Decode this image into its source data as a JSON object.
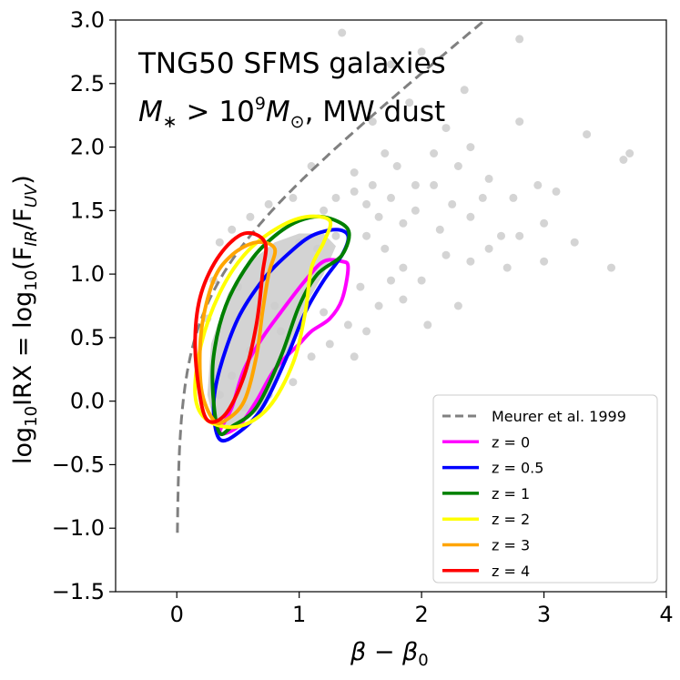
{
  "chart_data": {
    "type": "scatter",
    "title_line1": "TNG50 SFMS galaxies",
    "title_line2_prefix": "M",
    "title_line2_sub": "∗",
    "title_line2_gt": " > 10",
    "title_line2_sup": "9",
    "title_line2_m": "M",
    "title_line2_sun": "⊙",
    "title_line2_suffix": ", MW dust",
    "xlabel": "β − β",
    "xlabel_sub": "0",
    "ylabel_log": "log",
    "ylabel_sub10": "10",
    "ylabel_mid": "IRX = log",
    "ylabel_sub10b": "10",
    "ylabel_open": "(F",
    "ylabel_ir": "IR",
    "ylabel_slash": "/F",
    "ylabel_uv": "UV",
    "ylabel_close": ")",
    "xlim": [
      -0.5,
      4
    ],
    "ylim": [
      -1.5,
      3
    ],
    "xticks": [
      0,
      1,
      2,
      3,
      4
    ],
    "xtick_labels": [
      "0",
      "1",
      "2",
      "3",
      "4"
    ],
    "yticks": [
      -1.5,
      -1.0,
      -0.5,
      0.0,
      0.5,
      1.0,
      1.5,
      2.0,
      2.5,
      3.0
    ],
    "ytick_labels": [
      "−1.5",
      "−1.0",
      "−0.5",
      "0.0",
      "0.5",
      "1.0",
      "1.5",
      "2.0",
      "2.5",
      "3.0"
    ],
    "scatter_color": "#cccccc",
    "scatter_points": [
      [
        1.35,
        2.9
      ],
      [
        2.0,
        2.75
      ],
      [
        2.8,
        2.85
      ],
      [
        1.75,
        2.65
      ],
      [
        2.35,
        2.45
      ],
      [
        1.9,
        2.35
      ],
      [
        2.2,
        2.15
      ],
      [
        1.6,
        2.2
      ],
      [
        2.8,
        2.2
      ],
      [
        3.35,
        2.1
      ],
      [
        3.7,
        1.95
      ],
      [
        3.65,
        1.9
      ],
      [
        3.1,
        1.65
      ],
      [
        1.1,
        1.85
      ],
      [
        1.45,
        1.8
      ],
      [
        1.8,
        1.85
      ],
      [
        2.1,
        1.95
      ],
      [
        2.4,
        2.0
      ],
      [
        2.55,
        1.75
      ],
      [
        2.75,
        1.6
      ],
      [
        2.95,
        1.7
      ],
      [
        2.25,
        1.55
      ],
      [
        1.55,
        1.55
      ],
      [
        1.75,
        1.6
      ],
      [
        1.95,
        1.5
      ],
      [
        2.15,
        1.35
      ],
      [
        2.4,
        1.45
      ],
      [
        2.55,
        1.2
      ],
      [
        2.8,
        1.3
      ],
      [
        3.0,
        1.1
      ],
      [
        3.25,
        1.25
      ],
      [
        3.55,
        1.05
      ],
      [
        3.0,
        1.4
      ],
      [
        2.7,
        1.05
      ],
      [
        2.4,
        1.1
      ],
      [
        2.2,
        1.15
      ],
      [
        2.0,
        0.95
      ],
      [
        1.85,
        1.05
      ],
      [
        1.7,
        1.2
      ],
      [
        1.55,
        1.3
      ],
      [
        1.5,
        0.9
      ],
      [
        1.65,
        0.75
      ],
      [
        1.85,
        0.8
      ],
      [
        2.05,
        0.6
      ],
      [
        2.3,
        0.75
      ],
      [
        1.4,
        0.6
      ],
      [
        1.55,
        0.55
      ],
      [
        1.25,
        0.45
      ],
      [
        1.45,
        0.35
      ],
      [
        1.65,
        1.45
      ],
      [
        1.45,
        1.65
      ],
      [
        1.3,
        1.6
      ],
      [
        1.2,
        1.5
      ],
      [
        0.95,
        1.6
      ],
      [
        0.75,
        1.55
      ],
      [
        0.6,
        1.45
      ],
      [
        0.45,
        1.35
      ],
      [
        0.35,
        1.25
      ],
      [
        1.6,
        1.7
      ],
      [
        1.85,
        1.4
      ],
      [
        2.1,
        1.7
      ],
      [
        1.3,
        1.3
      ],
      [
        1.15,
        1.2
      ],
      [
        1.0,
        1.25
      ],
      [
        0.85,
        0.55
      ],
      [
        1.1,
        0.35
      ],
      [
        0.95,
        0.15
      ],
      [
        0.75,
        0.05
      ],
      [
        0.3,
        0.95
      ],
      [
        0.25,
        0.65
      ],
      [
        0.5,
        0.9
      ],
      [
        0.6,
        0.4
      ],
      [
        0.45,
        0.2
      ],
      [
        0.35,
        0.05
      ],
      [
        0.55,
        -0.05
      ],
      [
        0.8,
        0.75
      ],
      [
        1.05,
        0.85
      ],
      [
        1.2,
        0.7
      ],
      [
        1.95,
        1.7
      ],
      [
        2.5,
        1.6
      ],
      [
        1.7,
        1.95
      ],
      [
        2.3,
        1.85
      ],
      [
        2.65,
        1.3
      ],
      [
        1.75,
        0.95
      ]
    ],
    "grey_region_color": "#d3d3d3",
    "meurer": {
      "label": "Meurer et al. 1999",
      "color": "#808080",
      "x_min": 0.005,
      "x_max": 3.7,
      "formula_a": 1.99,
      "formula_b": 1.0
    },
    "series": [
      {
        "name": "z = 0",
        "color": "#ff00ff",
        "points": [
          [
            0.35,
            -0.25
          ],
          [
            0.45,
            -0.05
          ],
          [
            0.55,
            0.25
          ],
          [
            0.7,
            0.5
          ],
          [
            0.85,
            0.7
          ],
          [
            1.05,
            0.95
          ],
          [
            1.2,
            1.1
          ],
          [
            1.35,
            1.1
          ],
          [
            1.4,
            1.05
          ],
          [
            1.35,
            0.8
          ],
          [
            1.25,
            0.65
          ],
          [
            1.1,
            0.55
          ],
          [
            1.0,
            0.45
          ],
          [
            0.8,
            0.25
          ],
          [
            0.65,
            0.0
          ],
          [
            0.5,
            -0.2
          ],
          [
            0.35,
            -0.25
          ]
        ]
      },
      {
        "name": "z = 0.5",
        "color": "#0000ff",
        "points": [
          [
            0.35,
            -0.3
          ],
          [
            0.3,
            -0.05
          ],
          [
            0.35,
            0.25
          ],
          [
            0.5,
            0.65
          ],
          [
            0.7,
            0.95
          ],
          [
            0.9,
            1.15
          ],
          [
            1.1,
            1.3
          ],
          [
            1.3,
            1.35
          ],
          [
            1.4,
            1.3
          ],
          [
            1.35,
            1.15
          ],
          [
            1.2,
            0.95
          ],
          [
            1.05,
            0.7
          ],
          [
            0.9,
            0.35
          ],
          [
            0.7,
            -0.05
          ],
          [
            0.5,
            -0.25
          ],
          [
            0.35,
            -0.3
          ]
        ]
      },
      {
        "name": "z = 1",
        "color": "#008000",
        "points": [
          [
            0.35,
            -0.25
          ],
          [
            0.3,
            0.0
          ],
          [
            0.3,
            0.35
          ],
          [
            0.4,
            0.75
          ],
          [
            0.6,
            1.1
          ],
          [
            0.8,
            1.3
          ],
          [
            1.0,
            1.42
          ],
          [
            1.2,
            1.45
          ],
          [
            1.4,
            1.35
          ],
          [
            1.35,
            1.15
          ],
          [
            1.15,
            1.0
          ],
          [
            1.0,
            0.75
          ],
          [
            0.85,
            0.35
          ],
          [
            0.65,
            -0.05
          ],
          [
            0.45,
            -0.2
          ],
          [
            0.35,
            -0.25
          ]
        ]
      },
      {
        "name": "z = 2",
        "color": "#ffff00",
        "points": [
          [
            0.25,
            -0.15
          ],
          [
            0.15,
            0.05
          ],
          [
            0.2,
            0.45
          ],
          [
            0.35,
            0.85
          ],
          [
            0.55,
            1.15
          ],
          [
            0.8,
            1.35
          ],
          [
            1.05,
            1.45
          ],
          [
            1.25,
            1.42
          ],
          [
            1.2,
            1.25
          ],
          [
            1.1,
            1.05
          ],
          [
            1.05,
            0.7
          ],
          [
            0.95,
            0.3
          ],
          [
            0.75,
            -0.05
          ],
          [
            0.5,
            -0.2
          ],
          [
            0.25,
            -0.15
          ]
        ]
      },
      {
        "name": "z = 3",
        "color": "#ffa500",
        "points": [
          [
            0.3,
            -0.15
          ],
          [
            0.2,
            0.1
          ],
          [
            0.2,
            0.55
          ],
          [
            0.3,
            0.95
          ],
          [
            0.45,
            1.15
          ],
          [
            0.65,
            1.25
          ],
          [
            0.8,
            1.2
          ],
          [
            0.75,
            1.0
          ],
          [
            0.7,
            0.7
          ],
          [
            0.65,
            0.35
          ],
          [
            0.55,
            0.0
          ],
          [
            0.4,
            -0.15
          ],
          [
            0.3,
            -0.15
          ]
        ]
      },
      {
        "name": "z = 4",
        "color": "#ff0000",
        "points": [
          [
            0.25,
            -0.15
          ],
          [
            0.18,
            0.1
          ],
          [
            0.15,
            0.5
          ],
          [
            0.2,
            0.85
          ],
          [
            0.35,
            1.15
          ],
          [
            0.55,
            1.32
          ],
          [
            0.72,
            1.25
          ],
          [
            0.7,
            1.0
          ],
          [
            0.65,
            0.6
          ],
          [
            0.55,
            0.2
          ],
          [
            0.4,
            -0.1
          ],
          [
            0.25,
            -0.15
          ]
        ]
      }
    ],
    "legend_position": "lower-right"
  }
}
